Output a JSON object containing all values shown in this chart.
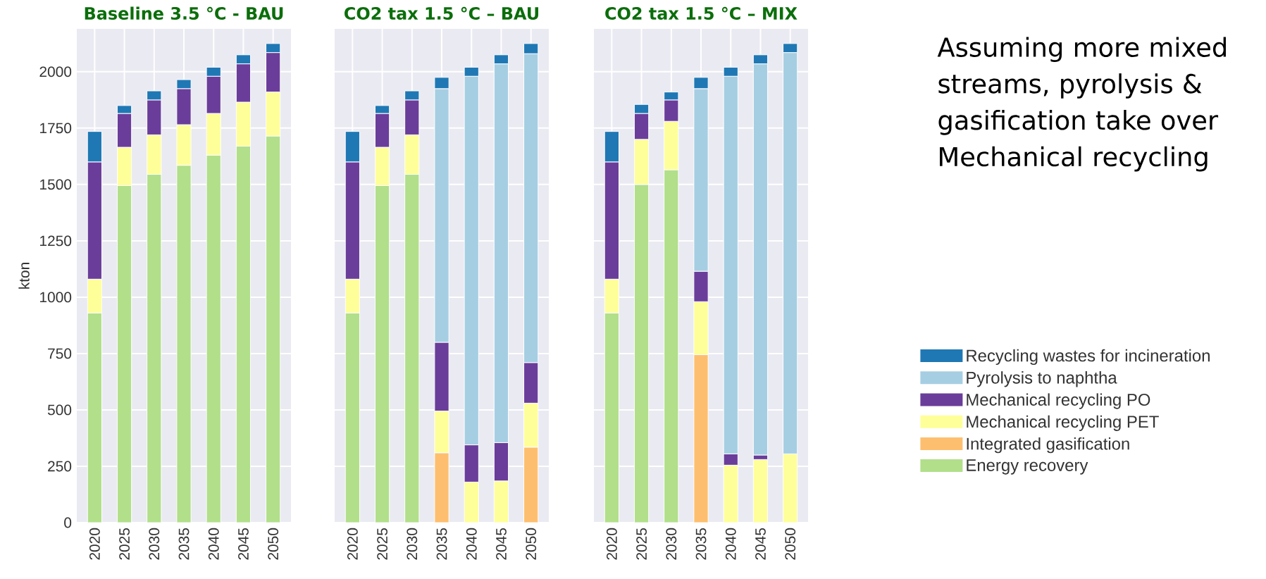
{
  "chart_data": [
    {
      "type": "bar",
      "stacked": true,
      "title": "Baseline 3.5 °C - BAU",
      "ylabel": "kton",
      "categories": [
        "2020",
        "2025",
        "2030",
        "2035",
        "2040",
        "2045",
        "2050"
      ],
      "ylim": [
        0,
        2190
      ],
      "yticks": [
        0,
        250,
        500,
        750,
        1000,
        1250,
        1500,
        1750,
        2000
      ],
      "grid": true,
      "legend": false,
      "series": [
        {
          "color": "#b2df8a",
          "values": [
            930,
            1495,
            1545,
            1585,
            1630,
            1670,
            1715
          ]
        },
        {
          "color": "#fdbf6f",
          "values": [
            null,
            null,
            null,
            null,
            null,
            null,
            null
          ]
        },
        {
          "color": "#ffff99",
          "values": [
            150,
            170,
            175,
            180,
            185,
            195,
            195
          ]
        },
        {
          "color": "#6a3d9a",
          "values": [
            520,
            150,
            155,
            160,
            165,
            170,
            175
          ]
        },
        {
          "color": "#a6cee3",
          "values": [
            null,
            null,
            null,
            null,
            null,
            null,
            null
          ]
        },
        {
          "color": "#1f78b4",
          "values": [
            135,
            35,
            40,
            40,
            40,
            40,
            40
          ]
        }
      ]
    },
    {
      "type": "bar",
      "stacked": true,
      "title": "CO2 tax 1.5 °C – BAU",
      "categories": [
        "2020",
        "2025",
        "2030",
        "2035",
        "2040",
        "2045",
        "2050"
      ],
      "ylim": [
        0,
        2190
      ],
      "yticks": [
        0,
        250,
        500,
        750,
        1000,
        1250,
        1500,
        1750,
        2000
      ],
      "grid": true,
      "legend": false,
      "tick_labels": "x",
      "series": [
        {
          "color": "#b2df8a",
          "values": [
            930,
            1495,
            1545,
            null,
            null,
            null,
            null
          ]
        },
        {
          "color": "#fdbf6f",
          "values": [
            null,
            null,
            null,
            310,
            null,
            null,
            335
          ]
        },
        {
          "color": "#ffff99",
          "values": [
            150,
            170,
            175,
            185,
            180,
            185,
            195
          ]
        },
        {
          "color": "#6a3d9a",
          "values": [
            520,
            150,
            155,
            305,
            165,
            170,
            180
          ]
        },
        {
          "color": "#a6cee3",
          "values": [
            null,
            null,
            null,
            1125,
            1635,
            1680,
            1370
          ]
        },
        {
          "color": "#1f78b4",
          "values": [
            135,
            35,
            40,
            50,
            40,
            40,
            45
          ]
        }
      ]
    },
    {
      "type": "bar",
      "stacked": true,
      "title": "CO2 tax 1.5 °C – MIX",
      "categories": [
        "2020",
        "2025",
        "2030",
        "2035",
        "2040",
        "2045",
        "2050"
      ],
      "ylim": [
        0,
        2190
      ],
      "yticks": [
        0,
        250,
        500,
        750,
        1000,
        1250,
        1500,
        1750,
        2000
      ],
      "grid": true,
      "legend": "right",
      "tick_labels": "x",
      "annotations": [
        "Assuming more mixed streams, pyrolysis & gasification take over Mechanical recycling"
      ],
      "series": [
        {
          "name": "Energy recovery",
          "color": "#b2df8a",
          "values": [
            930,
            1500,
            1565,
            null,
            null,
            null,
            null
          ]
        },
        {
          "name": "Integrated gasification",
          "color": "#fdbf6f",
          "values": [
            null,
            null,
            null,
            745,
            null,
            null,
            null
          ]
        },
        {
          "name": "Mechanical recycling PET",
          "color": "#ffff99",
          "values": [
            150,
            200,
            215,
            235,
            255,
            280,
            305
          ]
        },
        {
          "name": "Mechanical recycling PO",
          "color": "#6a3d9a",
          "values": [
            520,
            115,
            95,
            135,
            50,
            20,
            null
          ]
        },
        {
          "name": "Pyrolysis to naphtha",
          "color": "#a6cee3",
          "values": [
            null,
            null,
            null,
            810,
            1675,
            1735,
            1780
          ]
        },
        {
          "name": "Recycling wastes for incineration",
          "color": "#1f78b4",
          "values": [
            135,
            40,
            35,
            50,
            40,
            40,
            40
          ]
        }
      ]
    }
  ]
}
